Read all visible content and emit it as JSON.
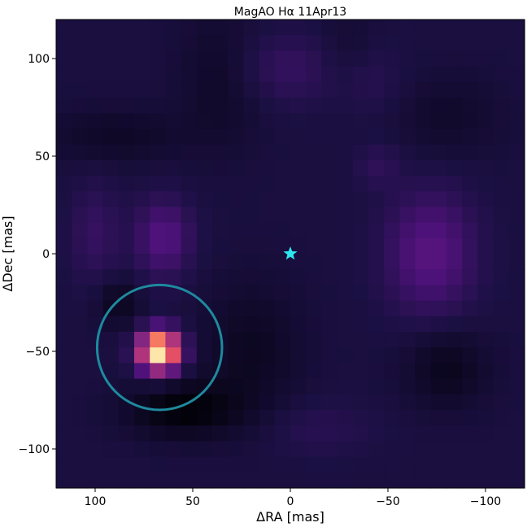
{
  "chart_data": {
    "type": "heatmap",
    "title": "MagAO Hα 11Apr13",
    "xlabel": "ΔRA [mas]",
    "ylabel": "ΔDec [mas]",
    "xlim": [
      120,
      -120
    ],
    "ylim": [
      -120,
      120
    ],
    "x_ticks": [
      {
        "value": 100,
        "label": "100"
      },
      {
        "value": 50,
        "label": "50"
      },
      {
        "value": 0,
        "label": "0"
      },
      {
        "value": -50,
        "label": "−50"
      },
      {
        "value": -100,
        "label": "−100"
      }
    ],
    "y_ticks": [
      {
        "value": 100,
        "label": "100"
      },
      {
        "value": 50,
        "label": "50"
      },
      {
        "value": 0,
        "label": "0"
      },
      {
        "value": -50,
        "label": "−50"
      },
      {
        "value": -100,
        "label": "−100"
      }
    ],
    "grid": false,
    "colormap": "magma",
    "star_marker": {
      "x": 0,
      "y": 0,
      "color": "#2ee6f0"
    },
    "circle": {
      "x": 67,
      "y": -48,
      "r": 32,
      "color": "#1e8a9e"
    },
    "background_level": 0.12,
    "blobs": [
      {
        "x": 67,
        "y": -50,
        "sx": 7,
        "sy": 7,
        "amp": 0.88
      },
      {
        "x": 65,
        "y": 8,
        "sx": 10,
        "sy": 14,
        "amp": 0.14
      },
      {
        "x": 100,
        "y": 10,
        "sx": 9,
        "sy": 18,
        "amp": 0.07
      },
      {
        "x": -72,
        "y": 0,
        "sx": 16,
        "sy": 22,
        "amp": 0.15
      },
      {
        "x": 0,
        "y": 95,
        "sx": 20,
        "sy": 13,
        "amp": 0.07
      },
      {
        "x": -40,
        "y": 90,
        "sx": 12,
        "sy": 14,
        "amp": 0.05
      },
      {
        "x": -45,
        "y": 45,
        "sx": 8,
        "sy": 8,
        "amp": 0.05
      },
      {
        "x": -15,
        "y": -90,
        "sx": 20,
        "sy": 10,
        "amp": 0.04
      },
      {
        "x": 55,
        "y": -80,
        "sx": 20,
        "sy": 10,
        "amp": -0.11
      },
      {
        "x": 20,
        "y": -50,
        "sx": 18,
        "sy": 25,
        "amp": -0.06
      },
      {
        "x": 88,
        "y": -25,
        "sx": 8,
        "sy": 9,
        "amp": -0.07
      },
      {
        "x": 90,
        "y": 60,
        "sx": 25,
        "sy": 10,
        "amp": -0.05
      },
      {
        "x": 35,
        "y": 90,
        "sx": 15,
        "sy": 25,
        "amp": -0.05
      },
      {
        "x": -30,
        "y": 100,
        "sx": 12,
        "sy": 15,
        "amp": -0.05
      },
      {
        "x": -80,
        "y": -58,
        "sx": 15,
        "sy": 15,
        "amp": -0.07
      },
      {
        "x": -80,
        "y": 70,
        "sx": 20,
        "sy": 15,
        "amp": -0.04
      }
    ]
  }
}
